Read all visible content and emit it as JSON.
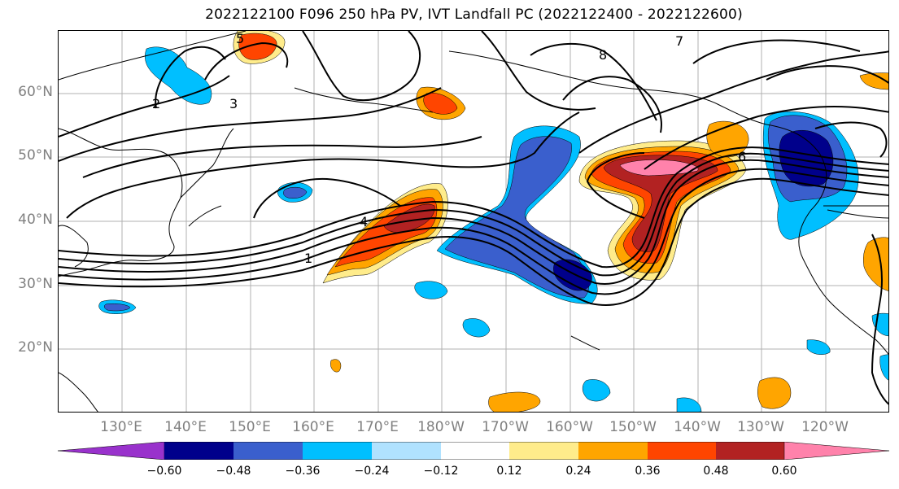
{
  "title": "2022122100 F096 250 hPa PV, IVT Landfall PC (2022122400 - 2022122600)",
  "lat_labels": [
    "60°N",
    "50°N",
    "40°N",
    "30°N",
    "20°N"
  ],
  "lon_labels": [
    "130°E",
    "140°E",
    "150°E",
    "160°E",
    "170°E",
    "180°W",
    "170°W",
    "160°W",
    "150°W",
    "140°W",
    "130°W",
    "120°W"
  ],
  "colorbar": {
    "ticks": [
      "−0.60",
      "−0.48",
      "−0.36",
      "−0.24",
      "−0.12",
      "0.12",
      "0.24",
      "0.36",
      "0.48",
      "0.60"
    ],
    "colors": [
      "#9932CC",
      "#00008B",
      "#3A5FCD",
      "#00BFFF",
      "#B0E2FF",
      "#FFFFFF",
      "#FFEC8B",
      "#FFA500",
      "#FF4500",
      "#B22222",
      "#FF82AB"
    ]
  },
  "contour_labels": [
    "1",
    "2",
    "3",
    "4",
    "5",
    "6",
    "7",
    "8"
  ]
}
